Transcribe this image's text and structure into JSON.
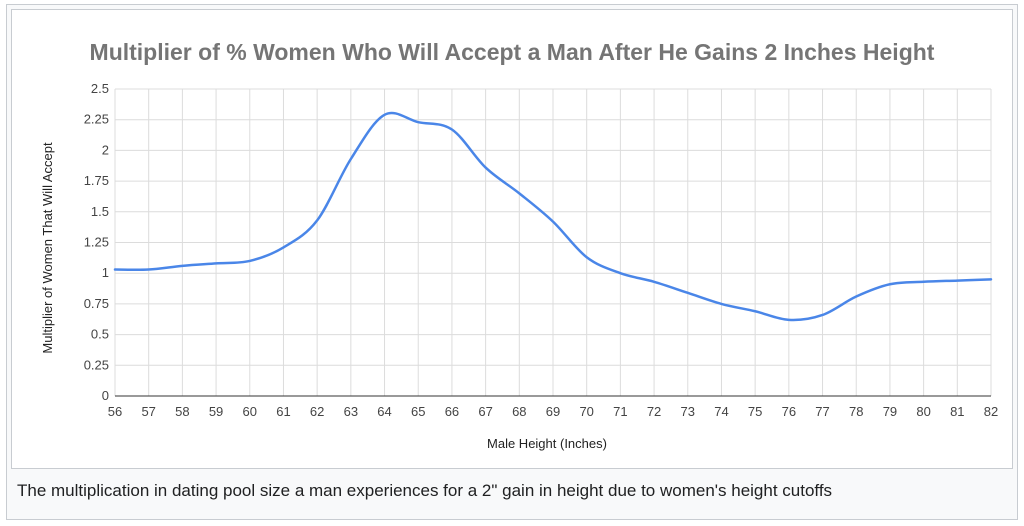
{
  "chart_data": {
    "type": "line",
    "title": "Multiplier of % Women Who Will Accept a Man After He Gains 2 Inches Height",
    "xlabel": "Male Height (Inches)",
    "ylabel": "Multiplier of Women That Will Accept",
    "xlim": [
      56,
      82
    ],
    "ylim": [
      0,
      2.5
    ],
    "x_ticks": [
      56,
      57,
      58,
      59,
      60,
      61,
      62,
      63,
      64,
      65,
      66,
      67,
      68,
      69,
      70,
      71,
      72,
      73,
      74,
      75,
      76,
      77,
      78,
      79,
      80,
      81,
      82
    ],
    "y_ticks": [
      0,
      0.25,
      0.5,
      0.75,
      1,
      1.25,
      1.5,
      1.75,
      2,
      2.25,
      2.5
    ],
    "y_tick_labels": [
      "0",
      "0.25",
      "0.5",
      "0.75",
      "1",
      "1.25",
      "1.5",
      "1.75",
      "2",
      "2.25",
      "2.5"
    ],
    "grid": true,
    "legend": "none",
    "series": [
      {
        "color": "#4a86e8",
        "x": [
          56,
          57,
          58,
          59,
          60,
          61,
          62,
          63,
          64,
          65,
          66,
          67,
          68,
          69,
          70,
          71,
          72,
          73,
          74,
          75,
          76,
          77,
          78,
          79,
          80,
          81,
          82
        ],
        "values": [
          1.03,
          1.03,
          1.06,
          1.08,
          1.1,
          1.21,
          1.43,
          1.93,
          2.29,
          2.23,
          2.17,
          1.86,
          1.65,
          1.42,
          1.13,
          1.0,
          0.93,
          0.84,
          0.75,
          0.69,
          0.62,
          0.66,
          0.81,
          0.91,
          0.93,
          0.94,
          0.95
        ]
      }
    ]
  },
  "caption": "The multiplication in dating pool size a man experiences for a 2\" gain in height due to women's height cutoffs"
}
